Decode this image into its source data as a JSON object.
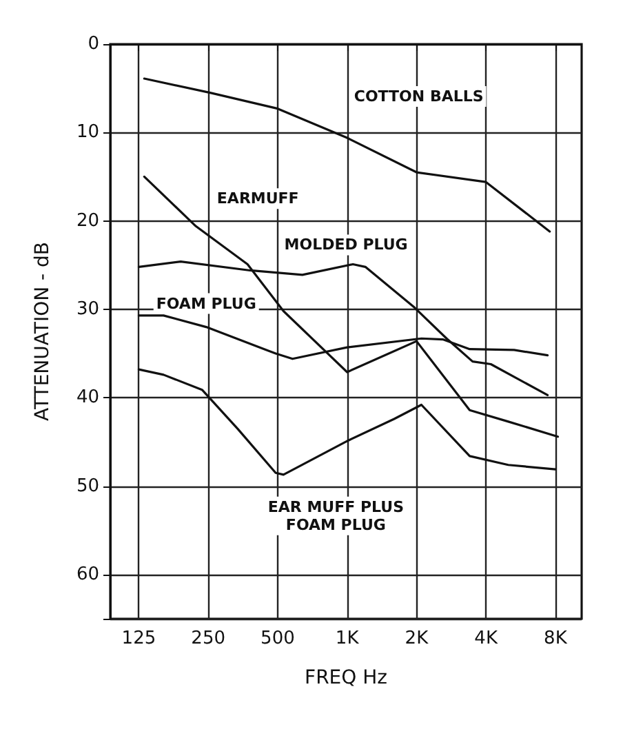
{
  "chart_data": {
    "type": "line",
    "xlabel": "FREQ Hz",
    "ylabel": "ATTENUATION - dB",
    "log": "x",
    "xlim": [
      94,
      10400
    ],
    "xticks": [
      {
        "value": 125,
        "label": "125"
      },
      250,
      500,
      {
        "value": 1000,
        "label": "1K"
      },
      {
        "value": 2000,
        "label": "2K"
      },
      {
        "value": 4000,
        "label": "4K"
      },
      {
        "value": 8000,
        "label": "8K"
      }
    ],
    "ylim": [
      65,
      0
    ],
    "yticks": [
      0,
      10,
      20,
      30,
      40,
      50,
      60
    ],
    "grid": true,
    "legend": false,
    "marker": "none",
    "line_style": "solid",
    "series": [
      {
        "name": "COTTON BALLS",
        "color": "#111111",
        "x": [
          132,
          255,
          500,
          1000,
          2000,
          4000,
          7560
        ],
        "values": [
          3.9,
          5.5,
          7.3,
          10.6,
          14.5,
          15.6,
          21.2
        ]
      },
      {
        "name": "EARMUFF",
        "color": "#111111",
        "x": [
          132,
          221,
          370,
          530,
          1000,
          2000,
          3400,
          5000,
          8200
        ],
        "values": [
          15,
          20.6,
          24.9,
          30.2,
          37.1,
          33.6,
          41.4,
          42.7,
          44.4
        ]
      },
      {
        "name": "MOLDED PLUG",
        "color": "#111111",
        "x": [
          125,
          190,
          380,
          640,
          1060,
          1200,
          1960,
          2700,
          3500,
          4200,
          7400
        ],
        "values": [
          25.2,
          24.6,
          25.6,
          26.1,
          24.9,
          25.2,
          29.8,
          33.3,
          35.9,
          36.2,
          39.7
        ]
      },
      {
        "name": "FOAM PLUG",
        "color": "#111111",
        "x": [
          125,
          160,
          245,
          490,
          580,
          1000,
          2100,
          2600,
          3400,
          5300,
          7400
        ],
        "values": [
          30.7,
          30.7,
          32,
          35,
          35.6,
          34.3,
          33.3,
          33.4,
          34.5,
          34.6,
          35.2
        ]
      },
      {
        "name": "EAR MUFF PLUS\nFOAM PLUG",
        "color": "#111111",
        "x": [
          125,
          160,
          235,
          335,
          490,
          530,
          1000,
          1600,
          2100,
          3400,
          5000,
          8000
        ],
        "values": [
          36.8,
          37.4,
          39.1,
          43.5,
          48.5,
          48.7,
          44.9,
          42.4,
          40.8,
          46.6,
          47.6,
          48.1
        ]
      }
    ]
  }
}
